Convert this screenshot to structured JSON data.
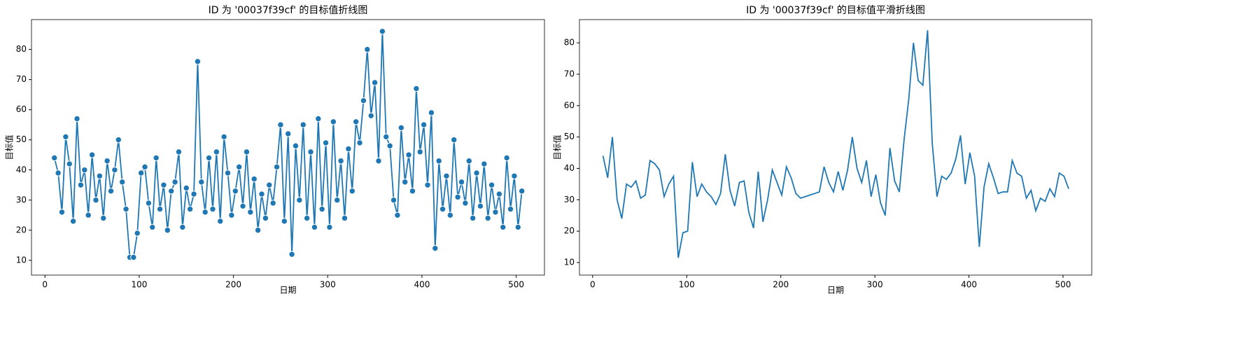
{
  "chart_data": [
    {
      "type": "line",
      "title": "ID 为 '00037f39cf' 的目标值折线图",
      "x_label": "日期",
      "y_label": "目标值",
      "color": "#1f77b4",
      "markers": true,
      "x": [
        10,
        14,
        18,
        22,
        26,
        30,
        34,
        38,
        42,
        46,
        50,
        54,
        58,
        62,
        66,
        70,
        74,
        78,
        82,
        86,
        90,
        94,
        98,
        102,
        106,
        110,
        114,
        118,
        122,
        126,
        130,
        134,
        138,
        142,
        146,
        150,
        154,
        158,
        162,
        166,
        170,
        174,
        178,
        182,
        186,
        190,
        194,
        198,
        202,
        206,
        210,
        214,
        218,
        222,
        226,
        230,
        234,
        238,
        242,
        246,
        250,
        254,
        258,
        262,
        266,
        270,
        274,
        278,
        282,
        286,
        290,
        294,
        298,
        302,
        306,
        310,
        314,
        318,
        322,
        326,
        330,
        334,
        338,
        342,
        346,
        350,
        354,
        358,
        362,
        366,
        370,
        374,
        378,
        382,
        386,
        390,
        394,
        398,
        402,
        406,
        410,
        414,
        418,
        422,
        426,
        430,
        434,
        438,
        442,
        446,
        450,
        454,
        458,
        462,
        466,
        470,
        474,
        478,
        482,
        486,
        490,
        494,
        498,
        502,
        506
      ],
      "values": [
        44,
        39,
        26,
        51,
        42,
        23,
        57,
        35,
        40,
        25,
        45,
        30,
        38,
        24,
        43,
        33,
        40,
        50,
        36,
        27,
        11,
        11,
        19,
        39,
        41,
        29,
        21,
        44,
        27,
        35,
        20,
        33,
        36,
        46,
        21,
        34,
        27,
        32,
        76,
        36,
        26,
        44,
        27,
        46,
        23,
        51,
        39,
        25,
        33,
        41,
        28,
        46,
        26,
        37,
        20,
        32,
        24,
        35,
        29,
        41,
        55,
        23,
        52,
        12,
        48,
        30,
        55,
        24,
        46,
        21,
        57,
        27,
        49,
        21,
        56,
        30,
        43,
        24,
        47,
        33,
        56,
        49,
        63,
        80,
        58,
        69,
        43,
        86,
        51,
        48,
        30,
        25,
        54,
        36,
        45,
        33,
        67,
        46,
        55,
        35,
        59,
        14,
        43,
        27,
        38,
        25,
        50,
        31,
        36,
        29,
        43,
        24,
        39,
        28,
        42,
        24,
        35,
        26,
        32,
        21,
        44,
        27,
        38,
        21,
        33
      ],
      "xlim": [
        -14.3,
        530
      ],
      "ylim": [
        5.1,
        89.9
      ],
      "xticks": [
        0,
        100,
        200,
        300,
        400,
        500
      ],
      "yticks": [
        10,
        20,
        30,
        40,
        50,
        60,
        70,
        80
      ]
    },
    {
      "type": "line",
      "title": "ID 为 '00037f39cf' 的目标值平滑折线图",
      "x_label": "日期",
      "y_label": "目标值",
      "color": "#1f77b4",
      "markers": false,
      "x": [
        11,
        16,
        21,
        26,
        31,
        36,
        41,
        46,
        51,
        56,
        61,
        66,
        71,
        76,
        81,
        86,
        91,
        96,
        101,
        106,
        111,
        116,
        121,
        126,
        131,
        136,
        141,
        146,
        151,
        156,
        161,
        166,
        171,
        176,
        181,
        186,
        191,
        196,
        201,
        206,
        211,
        216,
        221,
        226,
        231,
        236,
        241,
        246,
        251,
        256,
        261,
        266,
        271,
        276,
        281,
        286,
        291,
        296,
        301,
        306,
        311,
        316,
        321,
        326,
        331,
        336,
        341,
        346,
        351,
        356,
        361,
        366,
        371,
        376,
        381,
        386,
        391,
        396,
        401,
        406,
        411,
        416,
        421,
        426,
        431,
        436,
        441,
        446,
        451,
        456,
        461,
        466,
        471,
        476,
        481,
        486,
        491,
        496,
        501,
        506
      ],
      "values": [
        44,
        37,
        50,
        30,
        24,
        35,
        34,
        36,
        30.5,
        31.5,
        42.5,
        41.5,
        39.5,
        31,
        35,
        37.5,
        11.5,
        19.5,
        20,
        42,
        31,
        35,
        32.5,
        31,
        28.5,
        32,
        44.5,
        33,
        28,
        35.5,
        36,
        26,
        21,
        39,
        23,
        30,
        39.5,
        35.5,
        31.5,
        40.5,
        37,
        32,
        30.5,
        31,
        31.5,
        32,
        32.5,
        40.5,
        35.5,
        32.5,
        39,
        33,
        39.5,
        50,
        40,
        35.5,
        42.5,
        31,
        38,
        29,
        25,
        46.5,
        36,
        32.5,
        49,
        62,
        80,
        68,
        66.5,
        84,
        48,
        31,
        37.5,
        36.5,
        38.5,
        43,
        50.5,
        35,
        45,
        37.5,
        15,
        34,
        41.5,
        37,
        32,
        32.5,
        32.5,
        42.5,
        38.5,
        37.5,
        30.5,
        33,
        26.5,
        30.5,
        29.5,
        33.5,
        31,
        38.5,
        37.5,
        33.5
      ],
      "xlim": [
        -14,
        530.5
      ],
      "ylim": [
        6,
        87.4
      ],
      "xticks": [
        0,
        100,
        200,
        300,
        400,
        500
      ],
      "yticks": [
        10,
        20,
        30,
        40,
        50,
        60,
        70,
        80
      ]
    }
  ]
}
